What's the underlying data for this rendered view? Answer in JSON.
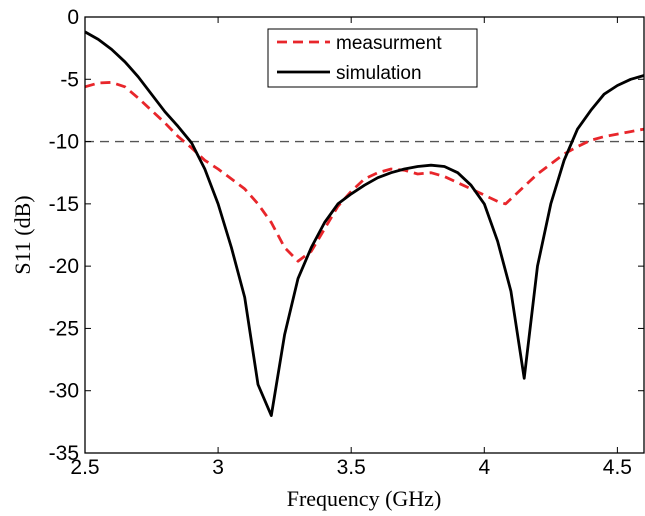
{
  "chart_data": {
    "type": "line",
    "title": "",
    "xlabel": "Frequency (GHz)",
    "ylabel": "S11 (dB)",
    "xlim": [
      2.5,
      4.6
    ],
    "ylim": [
      -35,
      0
    ],
    "xticks": [
      2.5,
      3,
      3.5,
      4,
      4.5
    ],
    "xtick_labels": [
      "2.5",
      "3",
      "3.5",
      "4",
      "4.5"
    ],
    "yticks": [
      0,
      -5,
      -10,
      -15,
      -20,
      -25,
      -30,
      -35
    ],
    "ytick_labels": [
      "0",
      "-5",
      "-10",
      "-15",
      "-20",
      "-25",
      "-30",
      "-35"
    ],
    "grid": false,
    "legend_position": "top-center",
    "reference_line": {
      "y": -10,
      "style": "dashed",
      "color": "#555555"
    },
    "series": [
      {
        "name": "measurment",
        "color": "#e8262b",
        "style": "dashed",
        "points": [
          [
            2.5,
            -5.6
          ],
          [
            2.55,
            -5.3
          ],
          [
            2.6,
            -5.25
          ],
          [
            2.65,
            -5.6
          ],
          [
            2.7,
            -6.5
          ],
          [
            2.75,
            -7.5
          ],
          [
            2.8,
            -8.5
          ],
          [
            2.85,
            -9.6
          ],
          [
            2.9,
            -10.5
          ],
          [
            2.95,
            -11.5
          ],
          [
            3.0,
            -12.2
          ],
          [
            3.05,
            -13.0
          ],
          [
            3.1,
            -13.8
          ],
          [
            3.15,
            -15.0
          ],
          [
            3.2,
            -16.5
          ],
          [
            3.25,
            -18.5
          ],
          [
            3.3,
            -19.6
          ],
          [
            3.35,
            -18.8
          ],
          [
            3.4,
            -17.0
          ],
          [
            3.45,
            -15.2
          ],
          [
            3.5,
            -14.0
          ],
          [
            3.55,
            -13.0
          ],
          [
            3.6,
            -12.5
          ],
          [
            3.65,
            -12.2
          ],
          [
            3.7,
            -12.3
          ],
          [
            3.75,
            -12.6
          ],
          [
            3.8,
            -12.5
          ],
          [
            3.85,
            -12.8
          ],
          [
            3.9,
            -13.3
          ],
          [
            3.95,
            -13.8
          ],
          [
            4.0,
            -14.3
          ],
          [
            4.05,
            -14.8
          ],
          [
            4.08,
            -15.0
          ],
          [
            4.1,
            -14.6
          ],
          [
            4.15,
            -13.6
          ],
          [
            4.2,
            -12.6
          ],
          [
            4.25,
            -11.8
          ],
          [
            4.3,
            -11.0
          ],
          [
            4.35,
            -10.4
          ],
          [
            4.4,
            -9.9
          ],
          [
            4.45,
            -9.6
          ],
          [
            4.5,
            -9.4
          ],
          [
            4.55,
            -9.2
          ],
          [
            4.6,
            -9.0
          ]
        ]
      },
      {
        "name": "simulation",
        "color": "#000000",
        "style": "solid",
        "points": [
          [
            2.5,
            -1.2
          ],
          [
            2.55,
            -1.8
          ],
          [
            2.6,
            -2.6
          ],
          [
            2.65,
            -3.6
          ],
          [
            2.7,
            -4.8
          ],
          [
            2.75,
            -6.2
          ],
          [
            2.8,
            -7.6
          ],
          [
            2.85,
            -8.8
          ],
          [
            2.9,
            -10.1
          ],
          [
            2.95,
            -12.2
          ],
          [
            3.0,
            -15.0
          ],
          [
            3.05,
            -18.5
          ],
          [
            3.1,
            -22.5
          ],
          [
            3.15,
            -29.5
          ],
          [
            3.2,
            -32.0
          ],
          [
            3.25,
            -25.5
          ],
          [
            3.3,
            -21.0
          ],
          [
            3.35,
            -18.5
          ],
          [
            3.4,
            -16.5
          ],
          [
            3.45,
            -15.0
          ],
          [
            3.5,
            -14.2
          ],
          [
            3.55,
            -13.5
          ],
          [
            3.6,
            -12.9
          ],
          [
            3.65,
            -12.5
          ],
          [
            3.7,
            -12.2
          ],
          [
            3.75,
            -12.0
          ],
          [
            3.8,
            -11.9
          ],
          [
            3.85,
            -12.0
          ],
          [
            3.9,
            -12.5
          ],
          [
            3.95,
            -13.5
          ],
          [
            4.0,
            -15.0
          ],
          [
            4.05,
            -18.0
          ],
          [
            4.1,
            -22.0
          ],
          [
            4.15,
            -29.0
          ],
          [
            4.2,
            -20.0
          ],
          [
            4.25,
            -15.0
          ],
          [
            4.3,
            -11.5
          ],
          [
            4.35,
            -9.0
          ],
          [
            4.4,
            -7.5
          ],
          [
            4.45,
            -6.2
          ],
          [
            4.5,
            -5.5
          ],
          [
            4.55,
            -5.0
          ],
          [
            4.6,
            -4.7
          ]
        ]
      }
    ]
  }
}
